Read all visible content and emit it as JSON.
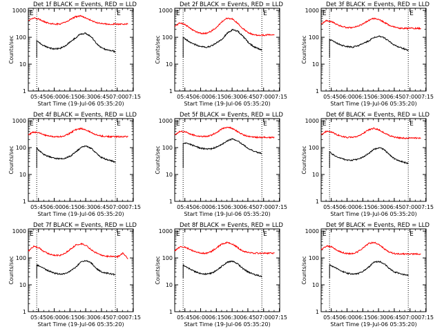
{
  "figure": {
    "x_title": "Start Time (19-Jul-06 05:35:20)",
    "y_title": "Counts/sec",
    "ytick_labels": [
      "1",
      "10",
      "100",
      "1000"
    ],
    "xtick_labels": [
      "05:45",
      "06:00",
      "06:15",
      "06:30",
      "06:45",
      "07:00",
      "07:15"
    ],
    "edge_marker_left": "E",
    "edge_marker_right": "E",
    "colors": {
      "events": "#000000",
      "lld": "#ff0000",
      "axes": "#000000",
      "background": "#ffffff"
    }
  },
  "chart_data": [
    {
      "type": "line",
      "title": "Det 1f BLACK = Events, RED = LLD",
      "x_unit": "minutes after 05:35:20",
      "xlim": [
        0,
        100
      ],
      "ylim": [
        1,
        1200
      ],
      "log_y": true,
      "vlines": [
        8,
        83
      ],
      "series": [
        {
          "name": "Events",
          "color": "#000000",
          "x": [
            8,
            10,
            15,
            20,
            25,
            30,
            35,
            40,
            45,
            50,
            55,
            60,
            65,
            70,
            75,
            80,
            83
          ],
          "y": [
            75,
            65,
            48,
            40,
            37,
            38,
            47,
            68,
            95,
            135,
            140,
            105,
            58,
            40,
            34,
            32,
            28
          ]
        },
        {
          "name": "LLD",
          "color": "#ff0000",
          "x": [
            0,
            5,
            10,
            15,
            20,
            25,
            30,
            35,
            40,
            45,
            50,
            55,
            60,
            65,
            70,
            75,
            80,
            85,
            90,
            95
          ],
          "y": [
            420,
            520,
            480,
            380,
            330,
            310,
            310,
            360,
            460,
            580,
            620,
            520,
            420,
            350,
            320,
            310,
            310,
            310,
            310,
            310
          ]
        }
      ]
    },
    {
      "type": "line",
      "title": "Det 2f BLACK = Events, RED = LLD",
      "x_unit": "minutes after 05:35:20",
      "xlim": [
        0,
        100
      ],
      "ylim": [
        1,
        1200
      ],
      "log_y": true,
      "vlines": [
        8,
        83
      ],
      "series": [
        {
          "name": "Events",
          "color": "#000000",
          "x": [
            8,
            10,
            15,
            20,
            25,
            30,
            35,
            40,
            45,
            50,
            55,
            60,
            65,
            70,
            75,
            80,
            83
          ],
          "y": [
            100,
            85,
            65,
            52,
            45,
            42,
            48,
            62,
            85,
            140,
            190,
            170,
            110,
            65,
            45,
            38,
            34
          ]
        },
        {
          "name": "LLD",
          "color": "#ff0000",
          "x": [
            0,
            5,
            10,
            15,
            20,
            25,
            30,
            35,
            40,
            45,
            50,
            55,
            60,
            65,
            70,
            75,
            80,
            85,
            90,
            95
          ],
          "y": [
            250,
            350,
            300,
            210,
            160,
            140,
            140,
            170,
            240,
            380,
            520,
            480,
            330,
            210,
            150,
            125,
            120,
            120,
            125,
            125
          ]
        }
      ]
    },
    {
      "type": "line",
      "title": "Det 3f BLACK = Events, RED = LLD",
      "x_unit": "minutes after 05:35:20",
      "xlim": [
        0,
        100
      ],
      "ylim": [
        1,
        1200
      ],
      "log_y": true,
      "vlines": [
        8,
        83
      ],
      "series": [
        {
          "name": "Events",
          "color": "#000000",
          "x": [
            8,
            10,
            15,
            20,
            25,
            30,
            35,
            40,
            45,
            50,
            55,
            60,
            65,
            70,
            75,
            80,
            83
          ],
          "y": [
            85,
            75,
            60,
            50,
            45,
            43,
            48,
            58,
            72,
            95,
            110,
            95,
            70,
            50,
            42,
            36,
            32
          ]
        },
        {
          "name": "LLD",
          "color": "#ff0000",
          "x": [
            0,
            5,
            10,
            15,
            20,
            25,
            30,
            35,
            40,
            45,
            50,
            55,
            60,
            65,
            70,
            75,
            80,
            85,
            90,
            95
          ],
          "y": [
            300,
            420,
            380,
            300,
            250,
            230,
            230,
            260,
            320,
            420,
            500,
            460,
            360,
            280,
            240,
            220,
            215,
            215,
            215,
            215
          ]
        }
      ]
    },
    {
      "type": "line",
      "title": "Det 4f BLACK = Events, RED = LLD",
      "x_unit": "minutes after 05:35:20",
      "xlim": [
        0,
        100
      ],
      "ylim": [
        1,
        1200
      ],
      "log_y": true,
      "vlines": [
        8,
        83
      ],
      "series": [
        {
          "name": "Events",
          "color": "#000000",
          "x": [
            8,
            10,
            15,
            20,
            25,
            30,
            35,
            40,
            45,
            50,
            55,
            60,
            65,
            70,
            75,
            80,
            83
          ],
          "y": [
            100,
            80,
            55,
            45,
            40,
            38,
            40,
            48,
            68,
            100,
            115,
            95,
            60,
            42,
            36,
            32,
            28
          ]
        },
        {
          "name": "LLD",
          "color": "#ff0000",
          "x": [
            0,
            5,
            10,
            15,
            20,
            25,
            30,
            35,
            40,
            45,
            50,
            55,
            60,
            65,
            70,
            75,
            80,
            85,
            90,
            95
          ],
          "y": [
            300,
            380,
            360,
            300,
            270,
            255,
            255,
            280,
            350,
            460,
            520,
            460,
            360,
            300,
            270,
            260,
            255,
            255,
            255,
            255
          ]
        }
      ]
    },
    {
      "type": "line",
      "title": "Det 5f BLACK = Events, RED = LLD",
      "x_unit": "minutes after 05:35:20",
      "xlim": [
        0,
        100
      ],
      "ylim": [
        1,
        1200
      ],
      "log_y": true,
      "vlines": [
        8,
        83
      ],
      "series": [
        {
          "name": "Events",
          "color": "#000000",
          "x": [
            8,
            10,
            15,
            20,
            25,
            30,
            35,
            40,
            45,
            50,
            55,
            60,
            65,
            70,
            75,
            80,
            83
          ],
          "y": [
            140,
            150,
            130,
            110,
            95,
            88,
            90,
            105,
            135,
            180,
            210,
            180,
            130,
            95,
            75,
            65,
            60
          ]
        },
        {
          "name": "LLD",
          "color": "#ff0000",
          "x": [
            0,
            5,
            10,
            15,
            20,
            25,
            30,
            35,
            40,
            45,
            50,
            55,
            60,
            65,
            70,
            75,
            80,
            85,
            90,
            95
          ],
          "y": [
            300,
            400,
            390,
            320,
            280,
            260,
            260,
            290,
            370,
            500,
            580,
            520,
            390,
            300,
            260,
            245,
            240,
            240,
            240,
            240
          ]
        }
      ]
    },
    {
      "type": "line",
      "title": "Det 6f BLACK = Events, RED = LLD",
      "x_unit": "minutes after 05:35:20",
      "xlim": [
        0,
        100
      ],
      "ylim": [
        1,
        1200
      ],
      "log_y": true,
      "vlines": [
        8,
        83
      ],
      "series": [
        {
          "name": "Events",
          "color": "#000000",
          "x": [
            8,
            10,
            15,
            20,
            25,
            30,
            35,
            40,
            45,
            50,
            55,
            60,
            65,
            70,
            75,
            80,
            83
          ],
          "y": [
            70,
            60,
            45,
            38,
            35,
            34,
            37,
            45,
            60,
            85,
            100,
            85,
            55,
            38,
            32,
            28,
            25
          ]
        },
        {
          "name": "LLD",
          "color": "#ff0000",
          "x": [
            0,
            5,
            10,
            15,
            20,
            25,
            30,
            35,
            40,
            45,
            50,
            55,
            60,
            65,
            70,
            75,
            80,
            85,
            90,
            95
          ],
          "y": [
            300,
            400,
            380,
            300,
            260,
            240,
            240,
            270,
            340,
            450,
            520,
            460,
            350,
            280,
            245,
            230,
            225,
            225,
            225,
            225
          ]
        }
      ]
    },
    {
      "type": "line",
      "title": "Det 7f BLACK = Events, RED = LLD",
      "x_unit": "minutes after 05:35:20",
      "xlim": [
        0,
        100
      ],
      "ylim": [
        1,
        1200
      ],
      "log_y": true,
      "vlines": [
        8,
        83
      ],
      "series": [
        {
          "name": "Events",
          "color": "#000000",
          "x": [
            8,
            10,
            15,
            20,
            25,
            30,
            35,
            40,
            45,
            50,
            55,
            60,
            65,
            70,
            75,
            80,
            83
          ],
          "y": [
            55,
            50,
            40,
            32,
            27,
            25,
            26,
            32,
            45,
            70,
            80,
            65,
            40,
            30,
            27,
            25,
            24
          ]
        },
        {
          "name": "LLD",
          "color": "#ff0000",
          "x": [
            0,
            5,
            10,
            15,
            20,
            25,
            30,
            35,
            40,
            45,
            50,
            55,
            60,
            65,
            70,
            75,
            80,
            85,
            90,
            95
          ],
          "y": [
            180,
            270,
            240,
            170,
            140,
            125,
            125,
            150,
            210,
            300,
            340,
            290,
            200,
            150,
            125,
            115,
            115,
            110,
            150,
            95
          ]
        }
      ]
    },
    {
      "type": "line",
      "title": "Det 8f BLACK = Events, RED = LLD",
      "x_unit": "minutes after 05:35:20",
      "xlim": [
        0,
        100
      ],
      "ylim": [
        1,
        1200
      ],
      "log_y": true,
      "vlines": [
        8,
        83
      ],
      "series": [
        {
          "name": "Events",
          "color": "#000000",
          "x": [
            8,
            10,
            15,
            20,
            25,
            30,
            35,
            40,
            45,
            50,
            55,
            60,
            65,
            70,
            75,
            80,
            83
          ],
          "y": [
            55,
            48,
            38,
            30,
            26,
            25,
            27,
            35,
            50,
            70,
            75,
            60,
            40,
            30,
            25,
            22,
            20
          ]
        },
        {
          "name": "LLD",
          "color": "#ff0000",
          "x": [
            0,
            5,
            10,
            15,
            20,
            25,
            30,
            35,
            40,
            45,
            50,
            55,
            60,
            65,
            70,
            75,
            80,
            85,
            90,
            95
          ],
          "y": [
            180,
            260,
            250,
            200,
            170,
            150,
            150,
            175,
            240,
            330,
            380,
            330,
            240,
            180,
            160,
            150,
            150,
            150,
            150,
            150
          ]
        }
      ]
    },
    {
      "type": "line",
      "title": "Det 9f BLACK = Events, RED = LLD",
      "x_unit": "minutes after 05:35:20",
      "xlim": [
        0,
        100
      ],
      "ylim": [
        1,
        1200
      ],
      "log_y": true,
      "vlines": [
        8,
        83
      ],
      "series": [
        {
          "name": "Events",
          "color": "#000000",
          "x": [
            8,
            10,
            15,
            20,
            25,
            30,
            35,
            40,
            45,
            50,
            55,
            60,
            65,
            70,
            75,
            80,
            83
          ],
          "y": [
            55,
            50,
            40,
            32,
            27,
            25,
            26,
            32,
            45,
            68,
            75,
            62,
            40,
            30,
            26,
            23,
            22
          ]
        },
        {
          "name": "LLD",
          "color": "#ff0000",
          "x": [
            0,
            5,
            10,
            15,
            20,
            25,
            30,
            35,
            40,
            45,
            50,
            55,
            60,
            65,
            70,
            75,
            80,
            85,
            90,
            95
          ],
          "y": [
            200,
            280,
            260,
            190,
            160,
            145,
            145,
            170,
            240,
            340,
            380,
            320,
            220,
            165,
            145,
            140,
            140,
            140,
            140,
            140
          ]
        }
      ]
    }
  ]
}
